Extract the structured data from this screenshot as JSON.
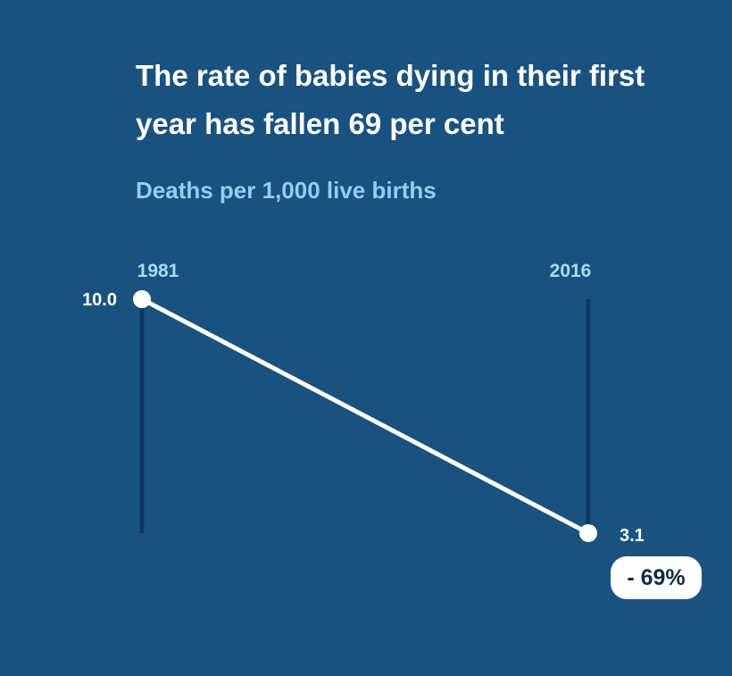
{
  "chart_data": {
    "type": "line",
    "title": "The rate of babies dying in their first year has fallen 69 per cent",
    "subtitle": "Deaths per 1,000 live births",
    "categories": [
      "1981",
      "2016"
    ],
    "values": [
      10.0,
      3.1
    ],
    "value_labels": [
      "10.0",
      "3.1"
    ],
    "change_label": "- 69%",
    "ylim": [
      3.1,
      10.0
    ],
    "colors": {
      "background": "#1a527f",
      "line": "#ffffff",
      "guide": "#0d3a63",
      "year_text": "#a9dcf7",
      "subtitle_text": "#8fd0f5"
    }
  }
}
